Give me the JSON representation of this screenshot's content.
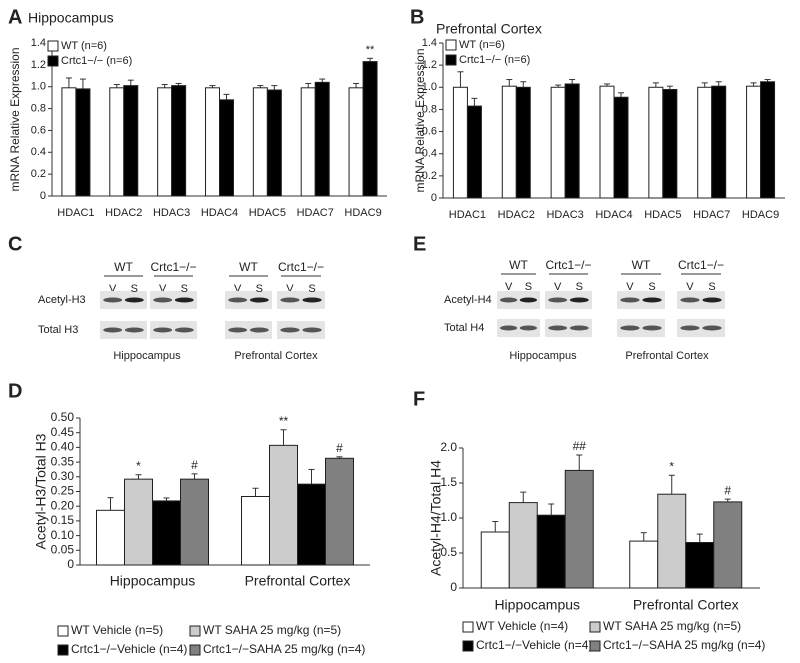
{
  "chart_data": [
    {
      "type": "bar",
      "panel_label": "A",
      "title": "Hippocampus",
      "y_label": "mRNA Relative Expression",
      "categories": [
        "HDAC1",
        "HDAC2",
        "HDAC3",
        "HDAC4",
        "HDAC5",
        "HDAC7",
        "HDAC9"
      ],
      "series": [
        {
          "name": "WT (n=6)",
          "color": "#ffffff",
          "values": [
            0.99,
            0.99,
            0.99,
            0.99,
            0.99,
            0.99,
            0.99
          ],
          "errors": [
            0.09,
            0.03,
            0.03,
            0.02,
            0.02,
            0.04,
            0.04
          ],
          "annotations": [
            null,
            null,
            null,
            null,
            null,
            null,
            null
          ]
        },
        {
          "name": "Crtc1−/− (n=6)",
          "color": "#000000",
          "values": [
            0.98,
            1.01,
            1.01,
            0.88,
            0.97,
            1.04,
            1.23
          ],
          "errors": [
            0.09,
            0.05,
            0.02,
            0.05,
            0.04,
            0.03,
            0.03
          ],
          "annotations": [
            null,
            null,
            null,
            null,
            null,
            null,
            "**"
          ]
        }
      ],
      "ylim": [
        0,
        1.4
      ],
      "yticks": [
        0,
        0.2,
        0.4,
        0.6,
        0.8,
        {
          "value": 1,
          "label": "1.0"
        },
        1.2,
        1.4
      ]
    },
    {
      "type": "bar",
      "panel_label": "B",
      "title": "Prefrontal Cortex",
      "y_label": "mRNA Relative Expression",
      "categories": [
        "HDAC1",
        "HDAC2",
        "HDAC3",
        "HDAC4",
        "HDAC5",
        "HDAC7",
        "HDAC9"
      ],
      "series": [
        {
          "name": "WT (n=6)",
          "color": "#ffffff",
          "values": [
            1.0,
            1.01,
            1.0,
            1.01,
            1.0,
            1.0,
            1.01
          ],
          "errors": [
            0.14,
            0.06,
            0.02,
            0.02,
            0.04,
            0.04,
            0.03
          ],
          "annotations": [
            null,
            null,
            null,
            null,
            null,
            null,
            null
          ]
        },
        {
          "name": "Crtc1−/− (n=6)",
          "color": "#000000",
          "values": [
            0.83,
            1.0,
            1.03,
            0.91,
            0.98,
            1.01,
            1.05
          ],
          "errors": [
            0.07,
            0.05,
            0.04,
            0.04,
            0.03,
            0.04,
            0.02
          ],
          "annotations": [
            null,
            null,
            null,
            null,
            null,
            null,
            null
          ]
        }
      ],
      "ylim": [
        0,
        1.4
      ],
      "yticks": [
        0,
        0.2,
        0.4,
        0.6,
        0.8,
        {
          "value": 1,
          "label": "1.0"
        },
        1.2,
        1.4
      ]
    },
    {
      "type": "bar",
      "panel_label": "D",
      "y_label": "Acetyl-H3/Total H3",
      "categories": [
        "Hippocampus",
        "Prefrontal Cortex"
      ],
      "series": [
        {
          "name": "WT Vehicle (n=5)",
          "color": "#ffffff",
          "values": [
            0.186,
            0.233
          ],
          "errors": [
            0.043,
            0.028
          ],
          "annotations": [
            null,
            null
          ]
        },
        {
          "name": "WT SAHA 25 mg/kg (n=5)",
          "color": "#cccccc",
          "values": [
            0.292,
            0.407
          ],
          "errors": [
            0.015,
            0.053
          ],
          "annotations": [
            "*",
            "**"
          ]
        },
        {
          "name": "Crtc1−/−Vehicle (n=4)",
          "color": "#000000",
          "values": [
            0.218,
            0.275
          ],
          "errors": [
            0.01,
            0.05
          ],
          "annotations": [
            null,
            null
          ]
        },
        {
          "name": "Crtc1−/−SAHA 25 mg/kg (n=4)",
          "color": "#808080",
          "values": [
            0.292,
            0.363
          ],
          "errors": [
            0.018,
            0.005
          ],
          "annotations": [
            "#",
            "#"
          ]
        }
      ],
      "ylim": [
        0,
        0.5
      ],
      "yticks": [
        0,
        0.05,
        {
          "value": 0.1,
          "label": "0.10"
        },
        0.15,
        {
          "value": 0.2,
          "label": "0.20"
        },
        0.25,
        {
          "value": 0.3,
          "label": "0.30"
        },
        0.35,
        {
          "value": 0.4,
          "label": "0.40"
        },
        0.45,
        {
          "value": 0.5,
          "label": "0.50"
        }
      ]
    },
    {
      "type": "bar",
      "panel_label": "F",
      "y_label": "Acetyl-H4/Total H4",
      "categories": [
        "Hippocampus",
        "Prefrontal Cortex"
      ],
      "series": [
        {
          "name": "WT Vehicle (n=4)",
          "color": "#ffffff",
          "values": [
            0.8,
            0.67
          ],
          "errors": [
            0.15,
            0.12
          ],
          "annotations": [
            null,
            null
          ]
        },
        {
          "name": "WT SAHA 25 mg/kg (n=5)",
          "color": "#cccccc",
          "values": [
            1.22,
            1.34
          ],
          "errors": [
            0.15,
            0.27
          ],
          "annotations": [
            null,
            "*"
          ]
        },
        {
          "name": "Crtc1−/−Vehicle (n=4)",
          "color": "#000000",
          "values": [
            1.04,
            0.65
          ],
          "errors": [
            0.16,
            0.12
          ],
          "annotations": [
            null,
            null
          ]
        },
        {
          "name": "Crtc1−/−SAHA 25 mg/kg (n=4)",
          "color": "#808080",
          "values": [
            1.68,
            1.23
          ],
          "errors": [
            0.22,
            0.04
          ],
          "annotations": [
            "##",
            "#"
          ]
        }
      ],
      "ylim": [
        0,
        2
      ],
      "yticks": [
        0,
        0.5,
        {
          "value": 1,
          "label": "1.0"
        },
        1.5,
        {
          "value": 2,
          "label": "2.0"
        }
      ]
    }
  ],
  "blots": [
    {
      "panel_label": "C",
      "groups": [
        {
          "label": "WT",
          "lanes": [
            "V",
            "S"
          ]
        },
        {
          "label": "Crtc1−/−",
          "lanes": [
            "V",
            "S"
          ]
        },
        {
          "label": "WT",
          "lanes": [
            "V",
            "S"
          ]
        },
        {
          "label": "Crtc1−/−",
          "lanes": [
            "V",
            "S"
          ]
        }
      ],
      "rows": [
        "Acetyl-H3",
        "Total H3"
      ],
      "regions": [
        "Hippocampus",
        "Prefrontal Cortex"
      ]
    },
    {
      "panel_label": "E",
      "groups": [
        {
          "label": "WT",
          "lanes": [
            "V",
            "S"
          ]
        },
        {
          "label": "Crtc1−/−",
          "lanes": [
            "V",
            "S"
          ]
        },
        {
          "label": "WT",
          "lanes": [
            "V",
            "S"
          ]
        },
        {
          "label": "Crtc1−/−",
          "lanes": [
            "V",
            "S"
          ]
        }
      ],
      "rows": [
        "Acetyl-H4",
        "Total H4"
      ],
      "regions": [
        "Hippocampus",
        "Prefrontal Cortex"
      ]
    }
  ]
}
